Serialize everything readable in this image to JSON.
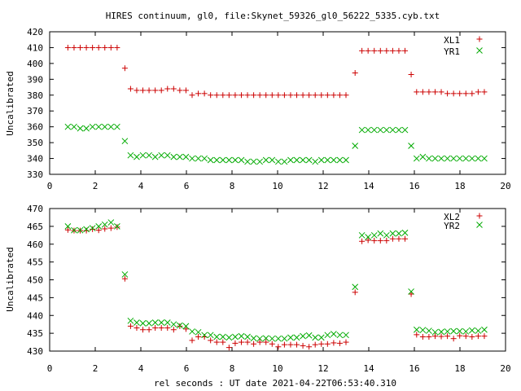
{
  "title": "HIRES continuum, gl0, file:Skynet_59326_gl0_56222_5335.cyb.txt",
  "chart_data": [
    {
      "type": "scatter",
      "ylabel": "Uncalibrated",
      "xlabel": "",
      "xlim": [
        0,
        20
      ],
      "ylim": [
        330,
        420
      ],
      "xticks": [
        "0",
        "2",
        "4",
        "6",
        "8",
        "10",
        "12",
        "14",
        "16",
        "18",
        "20"
      ],
      "yticks": [
        "330",
        "340",
        "350",
        "360",
        "370",
        "380",
        "390",
        "400",
        "410",
        "420"
      ],
      "legend_position": "top-right",
      "series": [
        {
          "name": "XL1",
          "marker": "plus",
          "color": "#cc0000",
          "x": [
            0.8,
            1.07,
            1.34,
            1.61,
            1.88,
            2.15,
            2.42,
            2.69,
            2.96,
            3.3,
            3.55,
            3.82,
            4.09,
            4.36,
            4.63,
            4.9,
            5.17,
            5.44,
            5.71,
            5.98,
            6.25,
            6.52,
            6.79,
            7.06,
            7.33,
            7.6,
            7.87,
            8.14,
            8.41,
            8.68,
            8.95,
            9.22,
            9.49,
            9.76,
            10.03,
            10.3,
            10.57,
            10.84,
            11.11,
            11.38,
            11.65,
            11.92,
            12.19,
            12.46,
            12.73,
            13.0,
            13.4,
            13.7,
            13.97,
            14.24,
            14.51,
            14.78,
            15.05,
            15.32,
            15.59,
            15.86,
            16.1,
            16.37,
            16.64,
            16.91,
            17.18,
            17.45,
            17.72,
            17.99,
            18.26,
            18.53,
            18.8,
            19.07
          ],
          "y": [
            410,
            410,
            410,
            410,
            410,
            410,
            410,
            410,
            410,
            397,
            384,
            383,
            383,
            383,
            383,
            383,
            384,
            384,
            383,
            383,
            380,
            381,
            381,
            380,
            380,
            380,
            380,
            380,
            380,
            380,
            380,
            380,
            380,
            380,
            380,
            380,
            380,
            380,
            380,
            380,
            380,
            380,
            380,
            380,
            380,
            380,
            394,
            408,
            408,
            408,
            408,
            408,
            408,
            408,
            408,
            393,
            382,
            382,
            382,
            382,
            382,
            381,
            381,
            381,
            381,
            381,
            382,
            382
          ]
        },
        {
          "name": "YR1",
          "marker": "cross",
          "color": "#00aa00",
          "x": [
            0.8,
            1.07,
            1.34,
            1.61,
            1.88,
            2.15,
            2.42,
            2.69,
            2.96,
            3.3,
            3.55,
            3.82,
            4.09,
            4.36,
            4.63,
            4.9,
            5.17,
            5.44,
            5.71,
            5.98,
            6.25,
            6.52,
            6.79,
            7.06,
            7.33,
            7.6,
            7.87,
            8.14,
            8.41,
            8.68,
            8.95,
            9.22,
            9.49,
            9.76,
            10.03,
            10.3,
            10.57,
            10.84,
            11.11,
            11.38,
            11.65,
            11.92,
            12.19,
            12.46,
            12.73,
            13.0,
            13.4,
            13.7,
            13.97,
            14.24,
            14.51,
            14.78,
            15.05,
            15.32,
            15.59,
            15.86,
            16.1,
            16.37,
            16.64,
            16.91,
            17.18,
            17.45,
            17.72,
            17.99,
            18.26,
            18.53,
            18.8,
            19.07
          ],
          "y": [
            360,
            360,
            359,
            359,
            360,
            360,
            360,
            360,
            360,
            351,
            342,
            341,
            342,
            342,
            341,
            342,
            342,
            341,
            341,
            341,
            340,
            340,
            340,
            339,
            339,
            339,
            339,
            339,
            339,
            338,
            338,
            338,
            339,
            339,
            338,
            338,
            339,
            339,
            339,
            339,
            338,
            339,
            339,
            339,
            339,
            339,
            348,
            358,
            358,
            358,
            358,
            358,
            358,
            358,
            358,
            348,
            340,
            341,
            340,
            340,
            340,
            340,
            340,
            340,
            340,
            340,
            340,
            340
          ]
        }
      ]
    },
    {
      "type": "scatter",
      "ylabel": "Uncalibrated",
      "xlabel": "rel seconds : UT date 2021-04-22T06:53:40.310",
      "xlim": [
        0,
        20
      ],
      "ylim": [
        430,
        470
      ],
      "xticks": [
        "0",
        "2",
        "4",
        "6",
        "8",
        "10",
        "12",
        "14",
        "16",
        "18",
        "20"
      ],
      "yticks": [
        "430",
        "435",
        "440",
        "445",
        "450",
        "455",
        "460",
        "465",
        "470"
      ],
      "legend_position": "top-right",
      "series": [
        {
          "name": "XL2",
          "marker": "plus",
          "color": "#cc0000",
          "x": [
            0.8,
            1.07,
            1.34,
            1.61,
            1.88,
            2.15,
            2.42,
            2.69,
            2.96,
            3.3,
            3.55,
            3.82,
            4.09,
            4.36,
            4.63,
            4.9,
            5.17,
            5.44,
            5.71,
            5.98,
            6.25,
            6.52,
            6.79,
            7.06,
            7.33,
            7.6,
            7.87,
            8.14,
            8.41,
            8.68,
            8.95,
            9.22,
            9.49,
            9.76,
            10.03,
            10.3,
            10.57,
            10.84,
            11.11,
            11.38,
            11.65,
            11.92,
            12.19,
            12.46,
            12.73,
            13.0,
            13.4,
            13.7,
            13.97,
            14.24,
            14.51,
            14.78,
            15.05,
            15.32,
            15.59,
            15.86,
            16.1,
            16.37,
            16.64,
            16.91,
            17.18,
            17.45,
            17.72,
            17.99,
            18.26,
            18.53,
            18.8,
            19.07
          ],
          "y": [
            464,
            463.8,
            463.8,
            463.8,
            464.2,
            463.9,
            464.3,
            464.5,
            464.8,
            450.3,
            437,
            436.5,
            436,
            436,
            436.5,
            436.5,
            436.5,
            436,
            437,
            436.2,
            433,
            434,
            434,
            433,
            432.5,
            432.5,
            431,
            432.2,
            432.5,
            432.5,
            432,
            432.5,
            432.5,
            432,
            431.2,
            431.8,
            431.8,
            431.8,
            431.5,
            431.2,
            431.8,
            432,
            432,
            432.3,
            432.2,
            432.5,
            446.5,
            460.8,
            461.1,
            461,
            461,
            461,
            461.5,
            461.5,
            461.5,
            446,
            434.6,
            434,
            434,
            434.2,
            434.1,
            434.2,
            433.5,
            434.3,
            434.2,
            434,
            434.2,
            434.2
          ]
        },
        {
          "name": "YR2",
          "marker": "cross",
          "color": "#00aa00",
          "x": [
            0.8,
            1.07,
            1.34,
            1.61,
            1.88,
            2.15,
            2.42,
            2.69,
            2.96,
            3.3,
            3.55,
            3.82,
            4.09,
            4.36,
            4.63,
            4.9,
            5.17,
            5.44,
            5.71,
            5.98,
            6.25,
            6.52,
            6.79,
            7.06,
            7.33,
            7.6,
            7.87,
            8.14,
            8.41,
            8.68,
            8.95,
            9.22,
            9.49,
            9.76,
            10.03,
            10.3,
            10.57,
            10.84,
            11.11,
            11.38,
            11.65,
            11.92,
            12.19,
            12.46,
            12.73,
            13.0,
            13.4,
            13.7,
            13.97,
            14.24,
            14.51,
            14.78,
            15.05,
            15.32,
            15.59,
            15.86,
            16.1,
            16.37,
            16.64,
            16.91,
            17.18,
            17.45,
            17.72,
            17.99,
            18.26,
            18.53,
            18.8,
            19.07
          ],
          "y": [
            465,
            463.9,
            463.9,
            464.2,
            464.5,
            465,
            465.5,
            466.1,
            465,
            451.5,
            438.5,
            438,
            437.8,
            437.8,
            438,
            438,
            438,
            437.5,
            437.2,
            437,
            435.5,
            435.3,
            434.5,
            434.5,
            434,
            434,
            433.8,
            434,
            434.2,
            434,
            433.6,
            433.5,
            433.6,
            433.5,
            433.5,
            433.5,
            433.8,
            433.8,
            434.2,
            434.4,
            433.8,
            433.8,
            434.5,
            434.8,
            434.5,
            434.5,
            448,
            462.5,
            462,
            462.5,
            463,
            462.5,
            463,
            463,
            463.2,
            446.7,
            436,
            435.9,
            435.7,
            435.3,
            435.4,
            435.5,
            435.6,
            435.6,
            435.5,
            435.8,
            435.7,
            436
          ]
        }
      ]
    }
  ]
}
